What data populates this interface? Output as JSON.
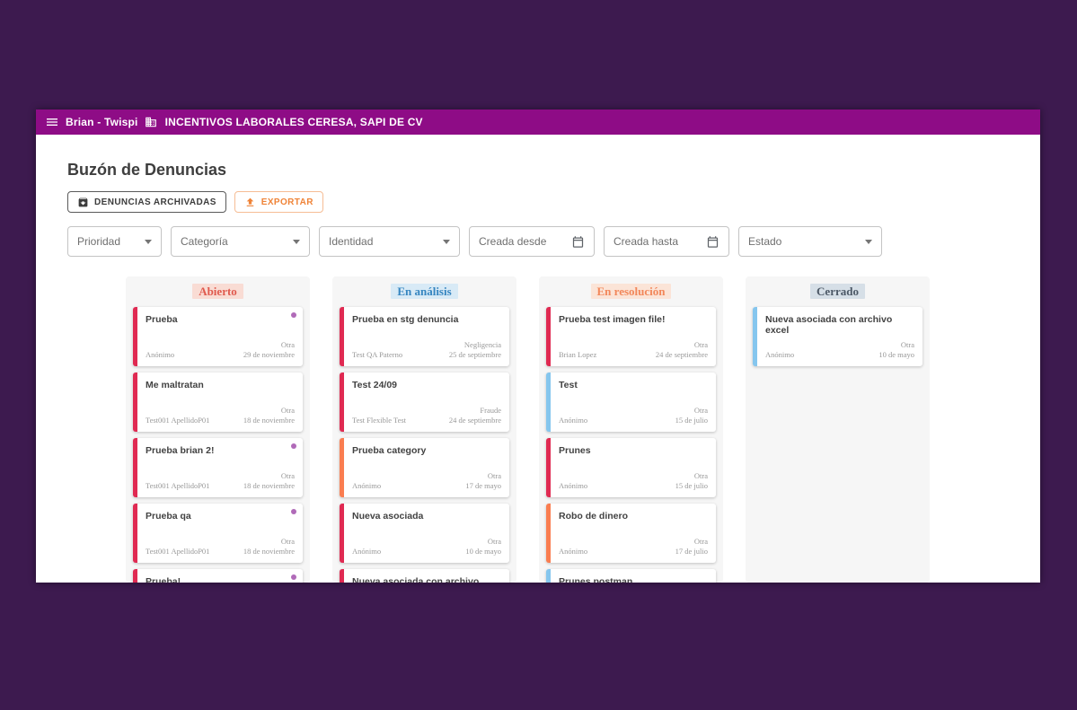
{
  "colors": {
    "background": "#3d1a4f",
    "app_bar": "#8e0c86",
    "attachment_dot": "#b06ab8",
    "export_accent": "#ef8337",
    "priority_high": "#e02a52",
    "priority_medium": "#fa7d50",
    "priority_low": "#85c6ee"
  },
  "app_bar": {
    "user_label": "Brian - Twispi",
    "company_label": "INCENTIVOS LABORALES CERESA, SAPI DE CV"
  },
  "page": {
    "title": "Buzón de Denuncias",
    "archived_button": "DENUNCIAS ARCHIVADAS",
    "export_button": "EXPORTAR"
  },
  "filters": [
    {
      "label": "Prioridad",
      "type": "select"
    },
    {
      "label": "Categoría",
      "type": "select"
    },
    {
      "label": "Identidad",
      "type": "select"
    },
    {
      "label": "Creada desde",
      "type": "date"
    },
    {
      "label": "Creada hasta",
      "type": "date"
    },
    {
      "label": "Estado",
      "type": "select"
    }
  ],
  "board": {
    "columns": [
      {
        "title": "Abierto",
        "title_color": "#e05a4e",
        "title_bg": "#f9dcd4",
        "cards": [
          {
            "title": "Prueba",
            "reporter": "Anónimo",
            "category": "Otra",
            "date": "29 de noviembre",
            "accent": "#e02a52",
            "attachment": true
          },
          {
            "title": "Me maltratan",
            "reporter": "Test001 ApellidoP01",
            "category": "Otra",
            "date": "18 de noviembre",
            "accent": "#e02a52",
            "attachment": false
          },
          {
            "title": "Prueba brian 2!",
            "reporter": "Test001 ApellidoP01",
            "category": "Otra",
            "date": "18 de noviembre",
            "accent": "#e02a52",
            "attachment": true
          },
          {
            "title": "Prueba qa",
            "reporter": "Test001 ApellidoP01",
            "category": "Otra",
            "date": "18 de noviembre",
            "accent": "#e02a52",
            "attachment": true
          },
          {
            "title": "Prueba!",
            "reporter": "",
            "category": "",
            "date": "",
            "accent": "#e02a52",
            "attachment": true
          }
        ]
      },
      {
        "title": "En análisis",
        "title_color": "#3585c0",
        "title_bg": "#d8eaf6",
        "cards": [
          {
            "title": "Prueba en stg denuncia",
            "reporter": "Test QA Paterno",
            "category": "Negligencia",
            "date": "25 de septiembre",
            "accent": "#e02a52",
            "attachment": false
          },
          {
            "title": "Test 24/09",
            "reporter": "Test Flexible Test",
            "category": "Fraude",
            "date": "24 de septiembre",
            "accent": "#e02a52",
            "attachment": false
          },
          {
            "title": "Prueba category",
            "reporter": "Anónimo",
            "category": "Otra",
            "date": "17 de mayo",
            "accent": "#fa7d50",
            "attachment": false
          },
          {
            "title": "Nueva asociada",
            "reporter": "Anónimo",
            "category": "Otra",
            "date": "10 de mayo",
            "accent": "#e02a52",
            "attachment": false
          },
          {
            "title": "Nueva asociada con archivo",
            "reporter": "",
            "category": "",
            "date": "",
            "accent": "#e02a52",
            "attachment": false
          }
        ]
      },
      {
        "title": "En resolución",
        "title_color": "#f2875a",
        "title_bg": "#fbe4d7",
        "cards": [
          {
            "title": "Prueba test imagen file!",
            "reporter": "Brian Lopez",
            "category": "Otra",
            "date": "24 de septiembre",
            "accent": "#e02a52",
            "attachment": false
          },
          {
            "title": "Test",
            "reporter": "Anónimo",
            "category": "Otra",
            "date": "15 de julio",
            "accent": "#85c6ee",
            "attachment": false
          },
          {
            "title": "Prunes",
            "reporter": "Anónimo",
            "category": "Otra",
            "date": "15 de julio",
            "accent": "#e02a52",
            "attachment": false
          },
          {
            "title": "Robo de dinero",
            "reporter": "Anónimo",
            "category": "Otra",
            "date": "17 de julio",
            "accent": "#fa7d50",
            "attachment": false
          },
          {
            "title": "Prunes postman",
            "reporter": "",
            "category": "",
            "date": "",
            "accent": "#85c6ee",
            "attachment": false
          }
        ]
      },
      {
        "title": "Cerrado",
        "title_color": "#4c5866",
        "title_bg": "#d6dfe7",
        "cards": [
          {
            "title": "Nueva asociada con archivo excel",
            "reporter": "Anónimo",
            "category": "Otra",
            "date": "10 de mayo",
            "accent": "#85c6ee",
            "attachment": false
          }
        ]
      }
    ]
  }
}
